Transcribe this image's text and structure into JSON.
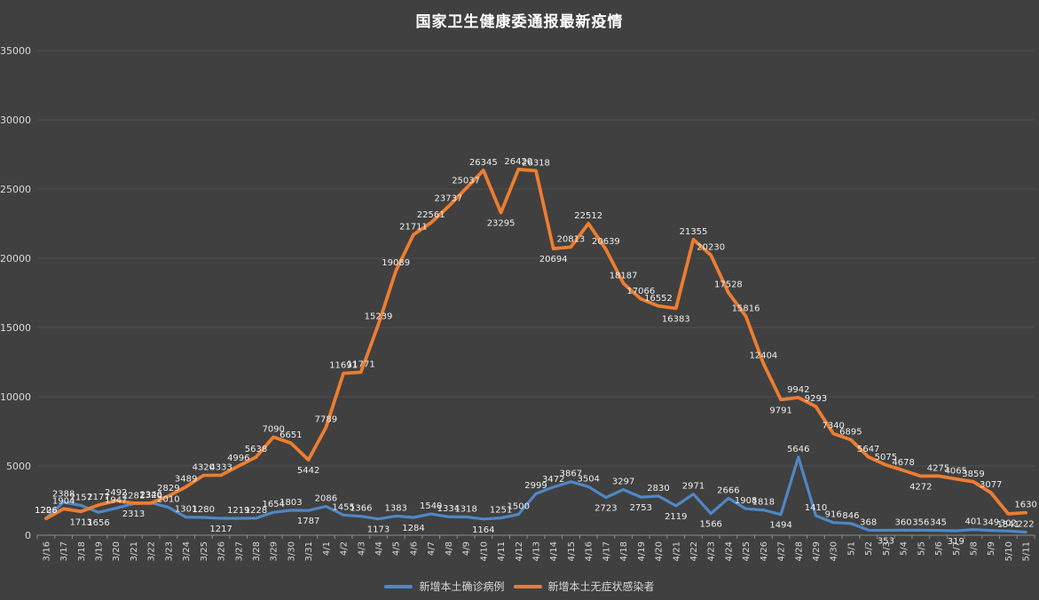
{
  "title": "国家卫生健康委通报最新疫情",
  "colors": {
    "background": "#404040",
    "grid": "#4f4f4f",
    "axis": "#8c8c8c",
    "tick_text": "#d9d9d9",
    "data_label_text": "#efefef",
    "title_text": "#ffffff",
    "blue": "#4f87c5",
    "orange": "#ed7d31"
  },
  "chart_data": {
    "type": "line",
    "title": "国家卫生健康委通报最新疫情",
    "grid": true,
    "data_labels": true,
    "legend_position": "bottom",
    "ylim": [
      0,
      35000
    ],
    "yticks": [
      0,
      5000,
      10000,
      15000,
      20000,
      25000,
      30000,
      35000
    ],
    "categories": [
      "3/16",
      "3/17",
      "3/18",
      "3/19",
      "3/20",
      "3/21",
      "3/22",
      "3/23",
      "3/24",
      "3/25",
      "3/26",
      "3/27",
      "3/28",
      "3/29",
      "3/30",
      "3/31",
      "4/1",
      "4/2",
      "4/3",
      "4/4",
      "4/5",
      "4/6",
      "4/7",
      "4/8",
      "4/9",
      "4/10",
      "4/11",
      "4/12",
      "4/13",
      "4/14",
      "4/15",
      "4/16",
      "4/17",
      "4/18",
      "4/19",
      "4/20",
      "4/21",
      "4/22",
      "4/23",
      "4/24",
      "4/25",
      "4/26",
      "4/27",
      "4/28",
      "4/29",
      "4/30",
      "5/1",
      "5/2",
      "5/3",
      "5/4",
      "5/5",
      "5/6",
      "5/7",
      "5/8",
      "5/9",
      "5/10",
      "5/11"
    ],
    "series": [
      {
        "name": "新增本土确诊病例",
        "color": "#4f87c5",
        "values": [
          1226,
          2388,
          2157,
          1656,
          1947,
          2281,
          2346,
          2010,
          1301,
          1280,
          1217,
          1219,
          1228,
          1654,
          1803,
          1787,
          2086,
          1455,
          1366,
          1173,
          1383,
          1284,
          1540,
          1334,
          1318,
          1164,
          1251,
          1500,
          2999,
          3472,
          3867,
          3504,
          2723,
          3297,
          2753,
          2830,
          2119,
          2971,
          1566,
          2666,
          1908,
          1818,
          1494,
          5646,
          1410,
          916,
          846,
          368,
          353,
          360,
          356,
          345,
          319,
          401,
          349,
          302,
          222
        ]
      },
      {
        "name": "新增本土无症状感染者",
        "color": "#ed7d31",
        "values": [
          1206,
          1904,
          1713,
          2177,
          2492,
          2313,
          2320,
          2829,
          3489,
          4320,
          4333,
          4996,
          5638,
          7090,
          6651,
          5442,
          7789,
          11691,
          11771,
          15239,
          19089,
          21711,
          22561,
          23737,
          25037,
          26345,
          23295,
          26420,
          26318,
          20694,
          20813,
          22512,
          20639,
          18187,
          17066,
          16552,
          16383,
          21355,
          20230,
          17528,
          15816,
          12404,
          9791,
          9942,
          9293,
          7340,
          6895,
          5647,
          5075,
          4678,
          4272,
          4275,
          4065,
          3859,
          3077,
          1541,
          1630
        ]
      }
    ]
  }
}
